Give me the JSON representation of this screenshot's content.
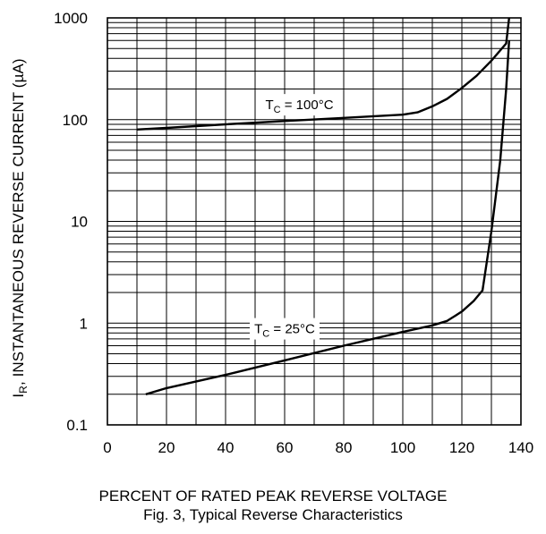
{
  "chart_data": {
    "type": "line",
    "y_scale": "log",
    "xlabel": "PERCENT OF RATED PEAK REVERSE VOLTAGE",
    "ylabel_main": "I",
    "ylabel_sub": "R",
    "ylabel_rest": ", INSTANTANEOUS REVERSE CURRENT (µA)",
    "caption": "Fig. 3,  Typical Reverse Characteristics",
    "xlim": [
      0,
      140
    ],
    "ylim": [
      0.1,
      1000
    ],
    "x_ticks": [
      "0",
      "20",
      "40",
      "60",
      "80",
      "100",
      "120",
      "140"
    ],
    "y_ticks": [
      "0.1",
      "1",
      "10",
      "100",
      "1000"
    ],
    "grid": true,
    "series": [
      {
        "name": "TC = 100°C",
        "label_main": "T",
        "label_sub": "C",
        "label_rest": " = 100°C",
        "x": [
          10,
          20,
          40,
          60,
          80,
          100,
          105,
          110,
          115,
          120,
          125,
          130,
          135,
          136
        ],
        "y": [
          80,
          83,
          90,
          97,
          104,
          112,
          118,
          135,
          160,
          205,
          270,
          380,
          560,
          1000
        ]
      },
      {
        "name": "TC = 25°C",
        "label_main": "T",
        "label_sub": "C",
        "label_rest": " = 25°C",
        "x": [
          13,
          20,
          40,
          60,
          80,
          100,
          110,
          115,
          120,
          124,
          127,
          130,
          133,
          135,
          136
        ],
        "y": [
          0.2,
          0.23,
          0.31,
          0.43,
          0.6,
          0.82,
          0.95,
          1.05,
          1.3,
          1.65,
          2.1,
          8,
          40,
          200,
          600
        ]
      }
    ]
  },
  "colors": {
    "line": "#000000",
    "grid": "#000000",
    "background": "#ffffff"
  }
}
